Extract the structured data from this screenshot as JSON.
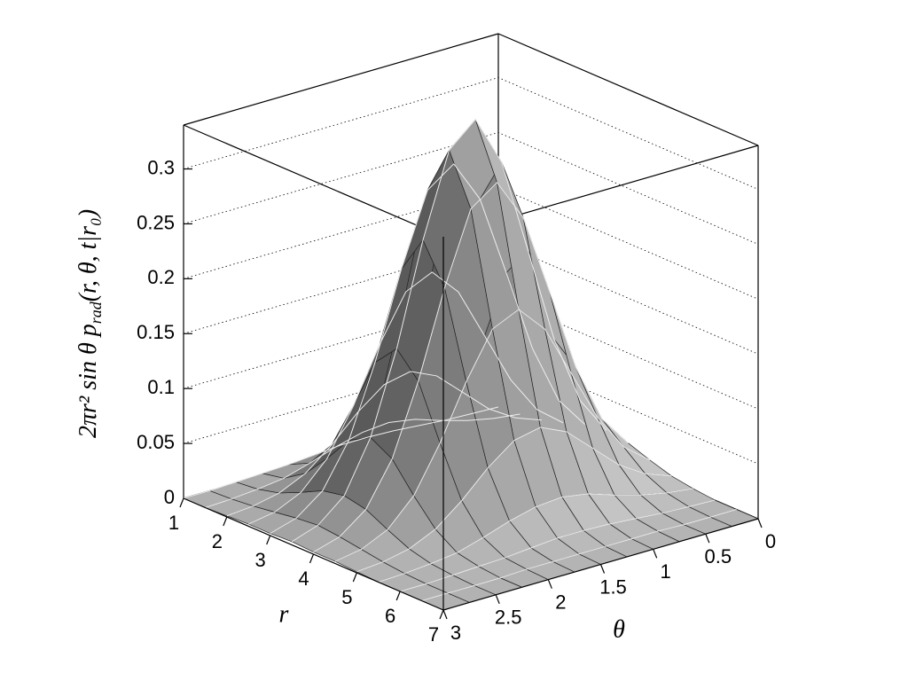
{
  "chart_data": {
    "type": "surface",
    "x_label": "r",
    "y_label": "θ",
    "z_label": [
      "2πr² sin θ p",
      "rad",
      "(r, θ, t|r₀)"
    ],
    "x": [
      1,
      1.5,
      2,
      2.5,
      3,
      3.5,
      4,
      4.5,
      5,
      5.5,
      6,
      6.5,
      7
    ],
    "y": [
      0,
      0.25,
      0.5,
      0.75,
      1,
      1.25,
      1.5,
      1.75,
      2,
      2.25,
      2.5,
      2.75,
      3
    ],
    "z": [
      [
        0,
        0.001,
        0.002,
        0.004,
        0.006,
        0.007,
        0.007,
        0.005,
        0.003,
        0.002,
        0.001,
        0,
        0
      ],
      [
        0.002,
        0.005,
        0.01,
        0.017,
        0.025,
        0.029,
        0.027,
        0.021,
        0.013,
        0.006,
        0.003,
        0.001,
        0
      ],
      [
        0.005,
        0.014,
        0.029,
        0.051,
        0.073,
        0.084,
        0.079,
        0.061,
        0.038,
        0.019,
        0.008,
        0.003,
        0.001
      ],
      [
        0.011,
        0.03,
        0.064,
        0.111,
        0.158,
        0.183,
        0.172,
        0.131,
        0.082,
        0.041,
        0.017,
        0.006,
        0.002
      ],
      [
        0.018,
        0.047,
        0.101,
        0.177,
        0.251,
        0.29,
        0.273,
        0.208,
        0.13,
        0.066,
        0.027,
        0.009,
        0.002
      ],
      [
        0.021,
        0.055,
        0.118,
        0.206,
        0.293,
        0.339,
        0.318,
        0.243,
        0.151,
        0.077,
        0.031,
        0.011,
        0.003
      ],
      [
        0.018,
        0.047,
        0.101,
        0.177,
        0.251,
        0.29,
        0.273,
        0.208,
        0.13,
        0.066,
        0.027,
        0.009,
        0.002
      ],
      [
        0.011,
        0.03,
        0.064,
        0.111,
        0.158,
        0.183,
        0.172,
        0.131,
        0.082,
        0.041,
        0.017,
        0.006,
        0.002
      ],
      [
        0.005,
        0.014,
        0.029,
        0.051,
        0.073,
        0.084,
        0.079,
        0.061,
        0.038,
        0.019,
        0.008,
        0.003,
        0.001
      ],
      [
        0.002,
        0.005,
        0.01,
        0.017,
        0.025,
        0.029,
        0.027,
        0.021,
        0.013,
        0.006,
        0.003,
        0.001,
        0
      ],
      [
        0,
        0.001,
        0.002,
        0.004,
        0.006,
        0.007,
        0.007,
        0.005,
        0.003,
        0.002,
        0.001,
        0,
        0
      ],
      [
        0,
        0,
        0,
        0.001,
        0.001,
        0.001,
        0.001,
        0.001,
        0.001,
        0,
        0,
        0,
        0
      ],
      [
        0,
        0,
        0,
        0,
        0,
        0,
        0,
        0,
        0,
        0,
        0,
        0,
        0
      ]
    ],
    "xlim": [
      1,
      7
    ],
    "xticks": [
      1,
      2,
      3,
      4,
      5,
      6,
      7
    ],
    "ylim": [
      0,
      3
    ],
    "yticks": [
      0,
      0.5,
      1,
      1.5,
      2,
      2.5,
      3
    ],
    "zlim": [
      0,
      0.34
    ],
    "zticks": [
      0,
      0.05,
      0.1,
      0.15,
      0.2,
      0.25,
      0.3
    ],
    "grid": true,
    "color": "#b4b4b4"
  }
}
